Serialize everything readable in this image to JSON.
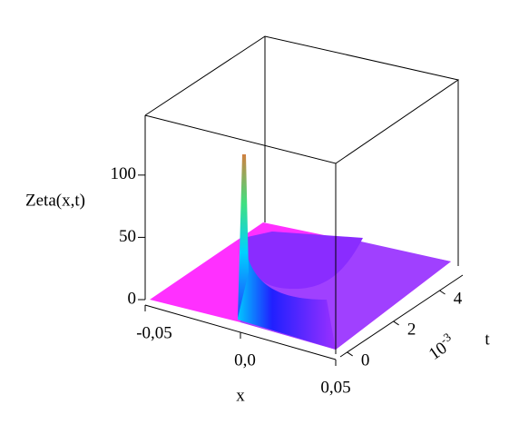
{
  "chart_data": {
    "type": "surface3d",
    "x_label": "x",
    "t_label": "t",
    "z_label": "Zeta(x,t)",
    "t_scale": {
      "base": "10",
      "exponent": "-3"
    },
    "xlim": [
      -0.05,
      0.05
    ],
    "xticks": [
      {
        "value": -0.05,
        "label": "-0,05"
      },
      {
        "value": 0.0,
        "label": "0,0"
      },
      {
        "value": 0.05,
        "label": "0,05"
      }
    ],
    "tlim": [
      -0.3,
      5
    ],
    "tticks": [
      0,
      2,
      4
    ],
    "zlim": [
      0,
      148
    ],
    "zticks": [
      0,
      50,
      100
    ]
  }
}
